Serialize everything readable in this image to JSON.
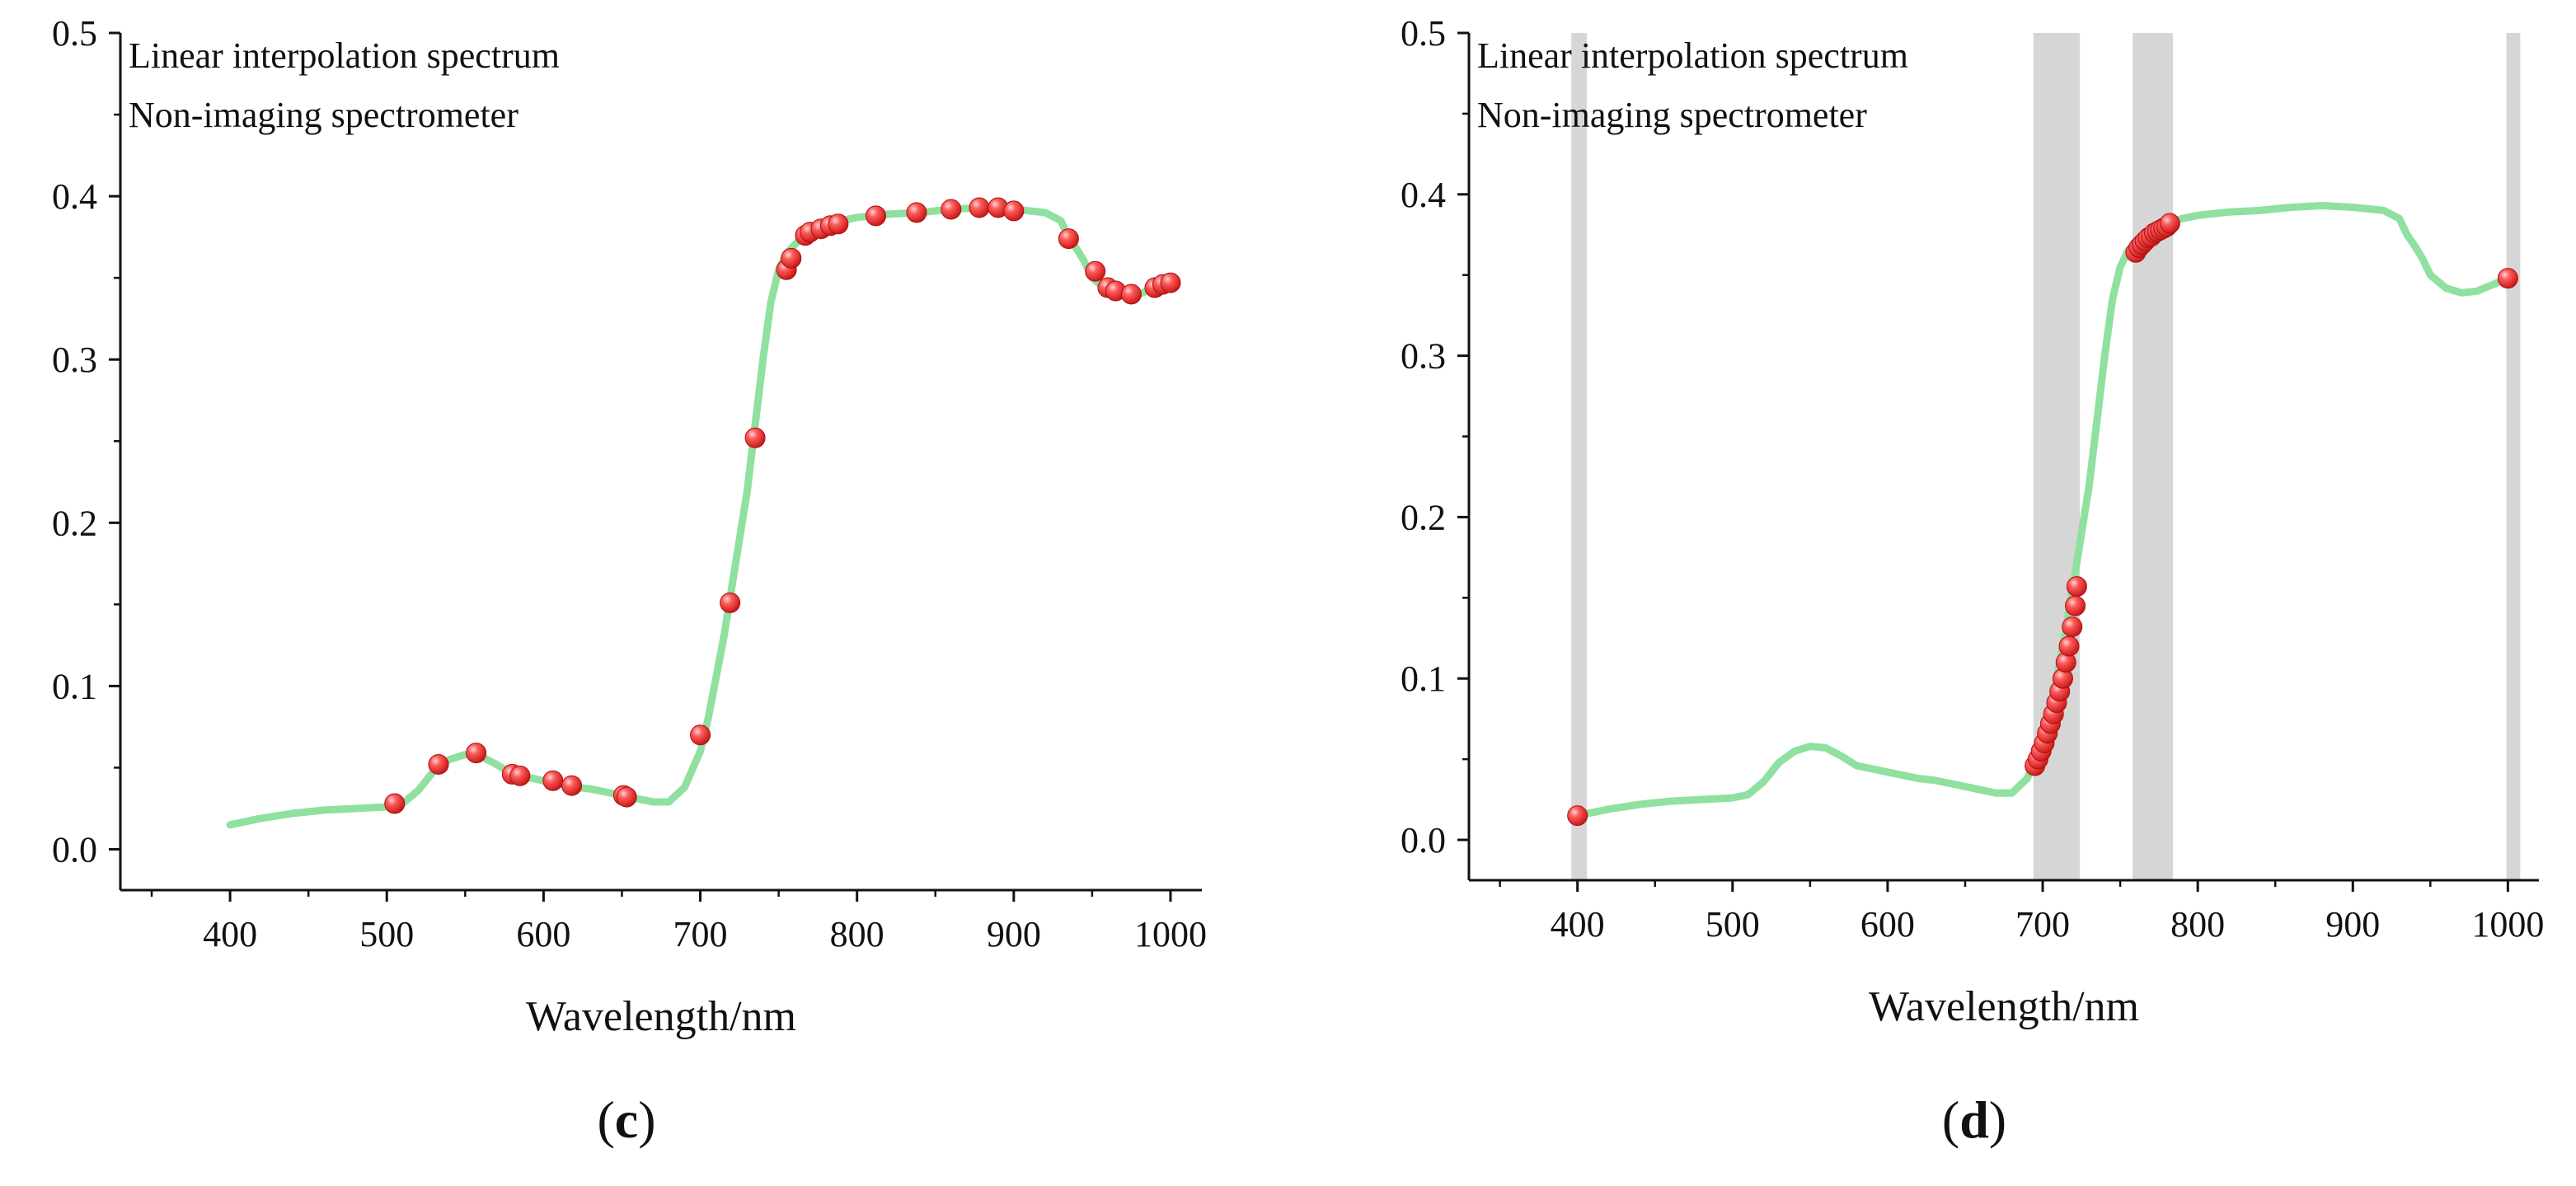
{
  "chart_data": [
    {
      "panel": "c",
      "type": "line",
      "panel_label_open": "(",
      "panel_label_letter": "c",
      "panel_label_close": ")",
      "xlabel": "Wavelength/nm",
      "ylabel": "",
      "xlim": [
        330,
        1020
      ],
      "ylim": [
        -0.025,
        0.5
      ],
      "xticks": [
        400,
        500,
        600,
        700,
        800,
        900,
        1000
      ],
      "yticks": [
        0.0,
        0.1,
        0.2,
        0.3,
        0.4,
        0.5
      ],
      "ytick_labels": [
        "0.0",
        "0.1",
        "0.2",
        "0.3",
        "0.4",
        "0.5"
      ],
      "legend": [
        "Linear interpolation spectrum",
        "Non-imaging spectrometer"
      ],
      "line_color": "#90e0a0",
      "marker_color": "#ee3b3b",
      "series": [
        {
          "name": "Linear interpolation spectrum",
          "style": "line",
          "x": [
            400,
            420,
            440,
            460,
            480,
            500,
            510,
            520,
            530,
            540,
            550,
            560,
            570,
            580,
            590,
            600,
            610,
            620,
            630,
            640,
            650,
            660,
            670,
            680,
            690,
            700,
            705,
            710,
            715,
            720,
            725,
            730,
            735,
            740,
            745,
            750,
            755,
            760,
            765,
            770,
            780,
            790,
            800,
            820,
            840,
            860,
            880,
            900,
            910,
            920,
            930,
            935,
            940,
            945,
            950,
            955,
            960,
            970,
            980,
            990,
            1000
          ],
          "y": [
            0.015,
            0.019,
            0.022,
            0.024,
            0.025,
            0.026,
            0.028,
            0.036,
            0.048,
            0.055,
            0.058,
            0.057,
            0.052,
            0.046,
            0.044,
            0.042,
            0.04,
            0.038,
            0.037,
            0.035,
            0.033,
            0.031,
            0.029,
            0.029,
            0.038,
            0.06,
            0.08,
            0.105,
            0.13,
            0.16,
            0.19,
            0.22,
            0.26,
            0.3,
            0.335,
            0.355,
            0.365,
            0.37,
            0.375,
            0.378,
            0.382,
            0.385,
            0.387,
            0.389,
            0.39,
            0.392,
            0.393,
            0.392,
            0.391,
            0.39,
            0.385,
            0.375,
            0.368,
            0.36,
            0.35,
            0.346,
            0.342,
            0.339,
            0.34,
            0.344,
            0.348
          ]
        },
        {
          "name": "Non-imaging spectrometer",
          "style": "markers",
          "x": [
            505,
            533,
            557,
            580,
            585,
            606,
            618,
            651,
            653,
            700,
            719,
            735,
            755,
            758,
            767,
            770,
            777,
            783,
            788,
            812,
            838,
            860,
            878,
            890,
            900,
            935,
            952,
            960,
            965,
            975,
            990,
            995,
            1000
          ],
          "y": [
            0.028,
            0.052,
            0.059,
            0.046,
            0.045,
            0.042,
            0.039,
            0.033,
            0.032,
            0.07,
            0.151,
            0.252,
            0.355,
            0.362,
            0.376,
            0.378,
            0.38,
            0.382,
            0.383,
            0.388,
            0.39,
            0.392,
            0.393,
            0.393,
            0.391,
            0.374,
            0.354,
            0.344,
            0.342,
            0.34,
            0.344,
            0.346,
            0.347
          ]
        }
      ]
    },
    {
      "panel": "d",
      "type": "line",
      "panel_label_open": "(",
      "panel_label_letter": "d",
      "panel_label_close": ")",
      "xlabel": "Wavelength/nm",
      "ylabel": "",
      "xlim": [
        330,
        1020
      ],
      "ylim": [
        -0.025,
        0.5
      ],
      "xticks": [
        400,
        500,
        600,
        700,
        800,
        900,
        1000
      ],
      "yticks": [
        0.0,
        0.1,
        0.2,
        0.3,
        0.4,
        0.5
      ],
      "ytick_labels": [
        "0.0",
        "0.1",
        "0.2",
        "0.3",
        "0.4",
        "0.5"
      ],
      "legend": [
        "Linear interpolation spectrum",
        "Non-imaging spectrometer"
      ],
      "line_color": "#90e0a0",
      "marker_color": "#ee3b3b",
      "band_color": "#d6d6d6",
      "bands": [
        [
          396,
          406
        ],
        [
          694,
          724
        ],
        [
          758,
          784
        ],
        [
          999,
          1008
        ]
      ],
      "series": [
        {
          "name": "Linear interpolation spectrum",
          "style": "line",
          "x": [
            400,
            420,
            440,
            460,
            480,
            500,
            510,
            520,
            530,
            540,
            550,
            560,
            570,
            580,
            590,
            600,
            610,
            620,
            630,
            640,
            650,
            660,
            670,
            680,
            690,
            700,
            705,
            710,
            715,
            720,
            725,
            730,
            735,
            740,
            745,
            750,
            755,
            760,
            765,
            770,
            780,
            790,
            800,
            820,
            840,
            860,
            880,
            900,
            910,
            920,
            930,
            935,
            940,
            945,
            950,
            955,
            960,
            970,
            980,
            990,
            1000
          ],
          "y": [
            0.015,
            0.019,
            0.022,
            0.024,
            0.025,
            0.026,
            0.028,
            0.036,
            0.048,
            0.055,
            0.058,
            0.057,
            0.052,
            0.046,
            0.044,
            0.042,
            0.04,
            0.038,
            0.037,
            0.035,
            0.033,
            0.031,
            0.029,
            0.029,
            0.038,
            0.06,
            0.08,
            0.105,
            0.13,
            0.16,
            0.19,
            0.22,
            0.26,
            0.3,
            0.335,
            0.355,
            0.365,
            0.37,
            0.375,
            0.378,
            0.382,
            0.385,
            0.387,
            0.389,
            0.39,
            0.392,
            0.393,
            0.392,
            0.391,
            0.39,
            0.385,
            0.375,
            0.368,
            0.36,
            0.35,
            0.346,
            0.342,
            0.339,
            0.34,
            0.344,
            0.348
          ]
        },
        {
          "name": "Non-imaging spectrometer",
          "style": "markers",
          "x": [
            400,
            695,
            697,
            699,
            701,
            703,
            705,
            707,
            709,
            711,
            713,
            715,
            717,
            719,
            721,
            722,
            760,
            762,
            764,
            766,
            768,
            770,
            772,
            774,
            776,
            778,
            780,
            782,
            1000
          ],
          "y": [
            0.015,
            0.046,
            0.05,
            0.055,
            0.06,
            0.066,
            0.072,
            0.078,
            0.085,
            0.092,
            0.1,
            0.11,
            0.12,
            0.132,
            0.145,
            0.157,
            0.364,
            0.367,
            0.369,
            0.371,
            0.373,
            0.374,
            0.376,
            0.377,
            0.378,
            0.379,
            0.38,
            0.382,
            0.348
          ]
        }
      ]
    }
  ]
}
